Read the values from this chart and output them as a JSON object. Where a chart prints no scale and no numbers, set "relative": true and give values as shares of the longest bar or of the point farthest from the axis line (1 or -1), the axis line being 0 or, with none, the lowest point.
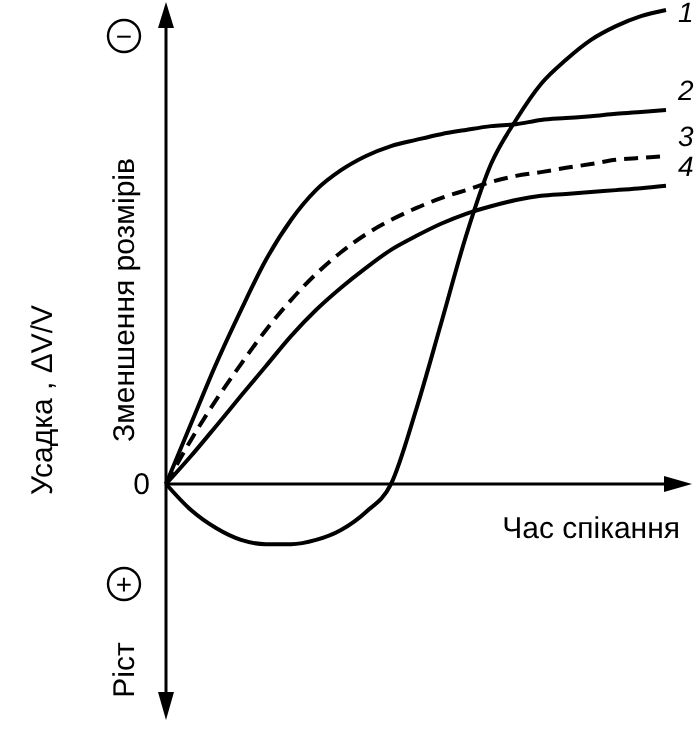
{
  "chart_data": {
    "type": "line",
    "relative": true,
    "xlabel": "Час спікання",
    "ylabel": "Усадка , ΔV/V",
    "annotations": [
      "0",
      "−",
      "+",
      "Зменшення розмірів",
      "Ріст"
    ],
    "categories": [
      null,
      null,
      null,
      null,
      null,
      null,
      null,
      null,
      null,
      null,
      null,
      null,
      null,
      null,
      null,
      null,
      null,
      null,
      null,
      null,
      null
    ],
    "series": [
      {
        "name": "1",
        "color": "#000000",
        "line_style": "solid",
        "values": [
          0,
          -0.055,
          -0.093,
          -0.118,
          -0.127,
          -0.127,
          -0.118,
          -0.097,
          -0.059,
          0,
          0.156,
          0.338,
          0.523,
          0.675,
          0.768,
          0.844,
          0.895,
          0.937,
          0.966,
          0.987,
          1
        ]
      },
      {
        "name": "2",
        "color": "#000000",
        "line_style": "solid",
        "values": [
          0,
          0.127,
          0.253,
          0.367,
          0.473,
          0.557,
          0.62,
          0.662,
          0.692,
          0.713,
          0.726,
          0.738,
          0.747,
          0.755,
          0.759,
          0.768,
          0.772,
          0.776,
          0.781,
          0.785,
          0.789
        ]
      },
      {
        "name": "3",
        "color": "#000000",
        "line_style": "dashed",
        "values": [
          0,
          0.093,
          0.177,
          0.253,
          0.325,
          0.388,
          0.443,
          0.489,
          0.527,
          0.557,
          0.582,
          0.603,
          0.62,
          0.637,
          0.65,
          0.658,
          0.667,
          0.675,
          0.684,
          0.688,
          0.692
        ]
      },
      {
        "name": "4",
        "color": "#000000",
        "line_style": "solid",
        "values": [
          0,
          0.059,
          0.122,
          0.186,
          0.249,
          0.312,
          0.367,
          0.414,
          0.456,
          0.494,
          0.523,
          0.549,
          0.57,
          0.586,
          0.599,
          0.608,
          0.612,
          0.616,
          0.62,
          0.624,
          0.629
        ]
      }
    ],
    "grid": false,
    "marker": "none"
  }
}
